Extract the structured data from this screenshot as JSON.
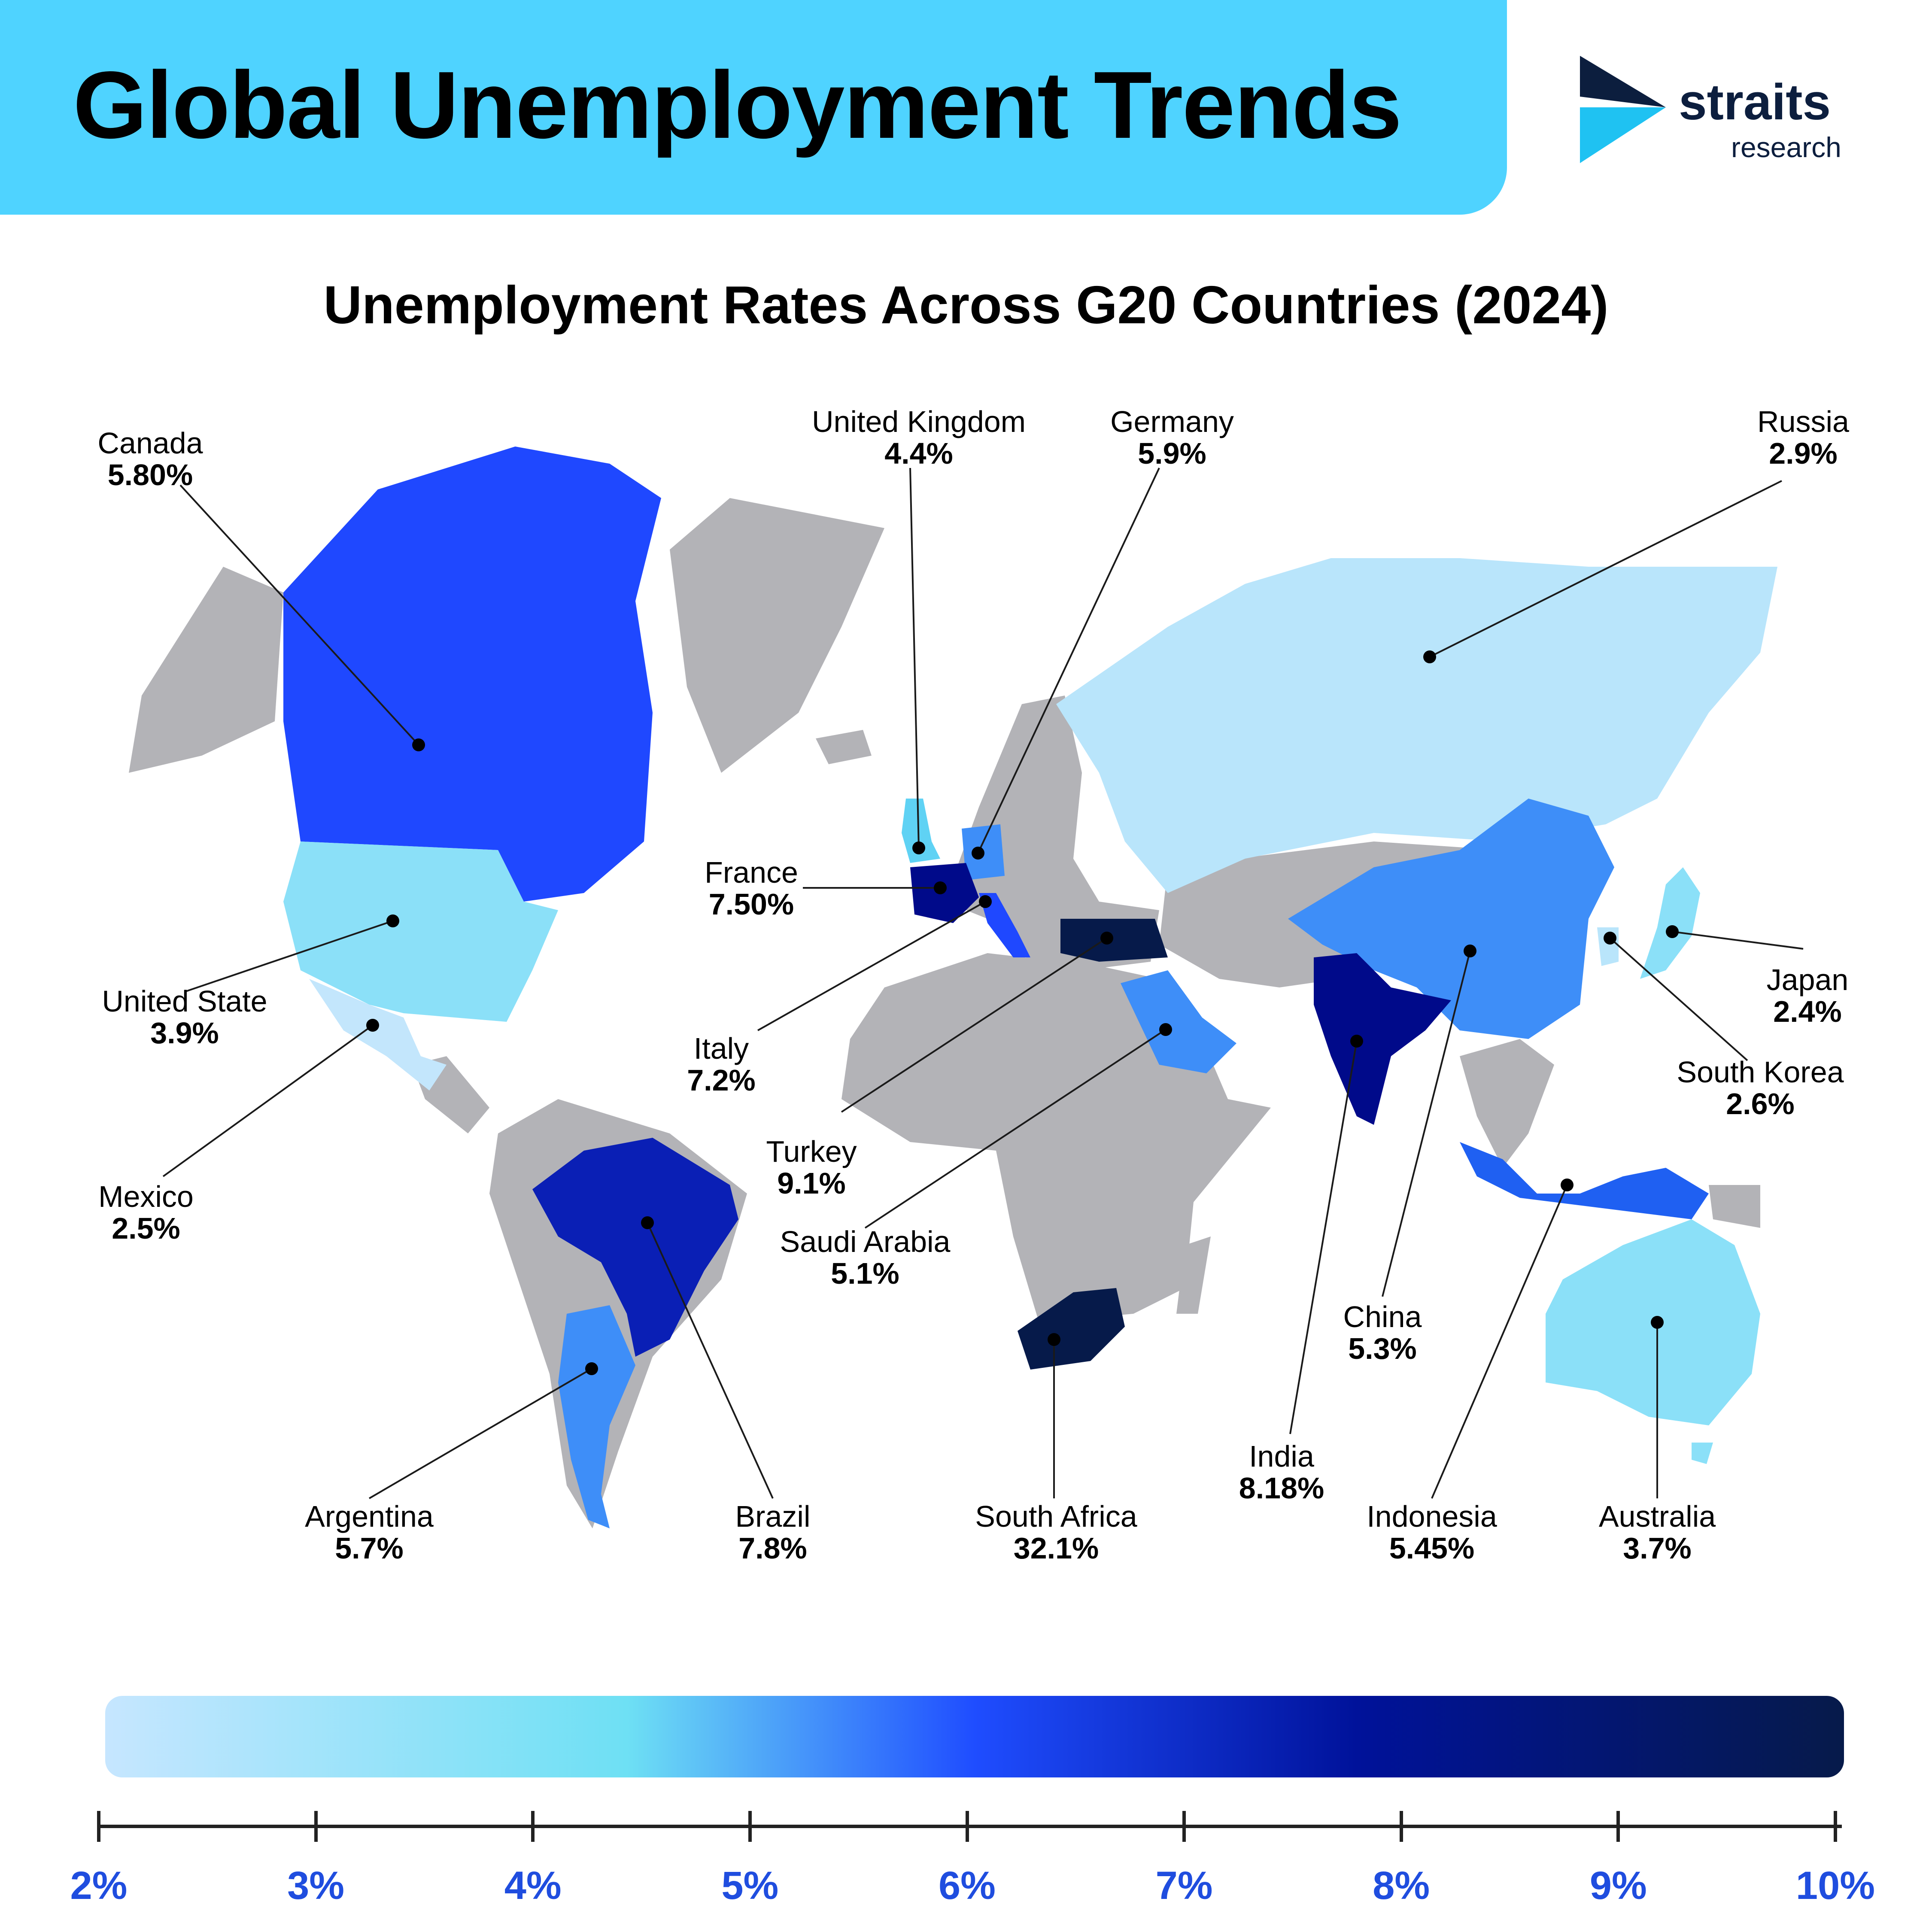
{
  "header": {
    "title": "Global Unemployment Trends"
  },
  "brand": {
    "name": "straits",
    "sub": "research"
  },
  "subtitle": "Unemployment Rates Across G20 Countries (2024)",
  "colors": {
    "banner": "#4fd3ff",
    "land": "#b3b3b7",
    "tick_text": "#1f4ddf"
  },
  "chart_data": {
    "type": "choropleth",
    "scale_min": 2,
    "scale_max": 10,
    "countries": [
      {
        "name": "Canada",
        "rate": "5.80%"
      },
      {
        "name": "United State",
        "rate": "3.9%"
      },
      {
        "name": "Mexico",
        "rate": "2.5%"
      },
      {
        "name": "Argentina",
        "rate": "5.7%"
      },
      {
        "name": "Brazil",
        "rate": "7.8%"
      },
      {
        "name": "United Kingdom",
        "rate": "4.4%"
      },
      {
        "name": "Germany",
        "rate": "5.9%"
      },
      {
        "name": "France",
        "rate": "7.50%"
      },
      {
        "name": "Italy",
        "rate": "7.2%"
      },
      {
        "name": "Turkey",
        "rate": "9.1%"
      },
      {
        "name": "Saudi Arabia",
        "rate": "5.1%"
      },
      {
        "name": "South Africa",
        "rate": "32.1%"
      },
      {
        "name": "Russia",
        "rate": "2.9%"
      },
      {
        "name": "China",
        "rate": "5.3%"
      },
      {
        "name": "India",
        "rate": "8.18%"
      },
      {
        "name": "Indonesia",
        "rate": "5.45%"
      },
      {
        "name": "Japan",
        "rate": "2.4%"
      },
      {
        "name": "South Korea",
        "rate": "2.6%"
      },
      {
        "name": "Australia",
        "rate": "3.7%"
      }
    ],
    "legend_ticks": [
      "2%",
      "3%",
      "4%",
      "5%",
      "6%",
      "7%",
      "8%",
      "9%",
      "10%"
    ]
  }
}
